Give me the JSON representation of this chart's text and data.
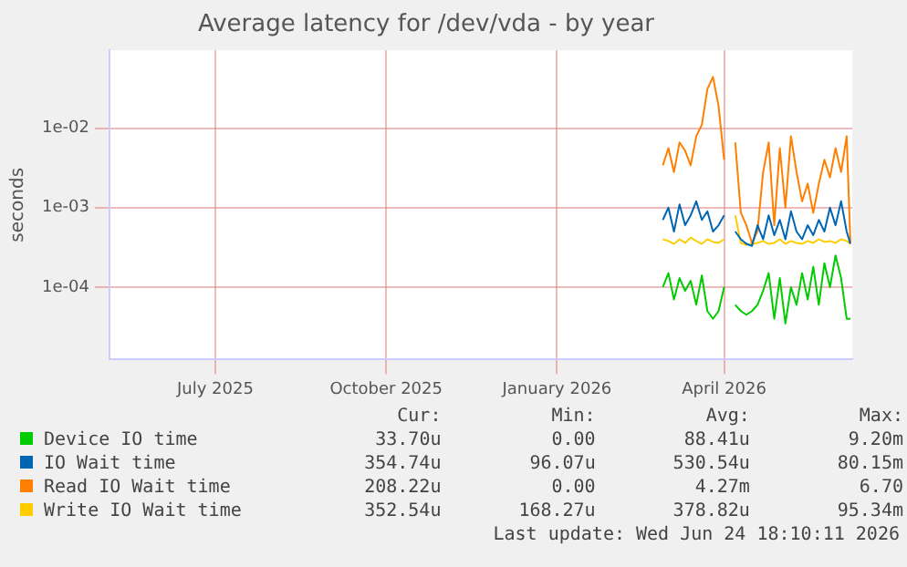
{
  "chart_data": {
    "type": "line",
    "title": "Average latency for /dev/vda - by year",
    "ylabel": "seconds",
    "log": "y",
    "grid": true,
    "legend": "bottom",
    "marker": "none",
    "x": [
      "2026-03-14",
      "2026-03-17",
      "2026-03-20",
      "2026-03-23",
      "2026-03-26",
      "2026-03-29",
      "2026-04-01",
      "2026-04-04",
      "2026-04-07",
      "2026-04-10",
      "2026-04-13",
      "2026-04-16",
      "2026-04-19",
      "2026-04-22",
      "2026-04-25",
      "2026-04-28",
      "2026-05-01",
      "2026-05-04",
      "2026-05-07",
      "2026-05-10",
      "2026-05-13",
      "2026-05-16",
      "2026-05-19",
      "2026-05-22",
      "2026-05-25",
      "2026-05-28",
      "2026-05-31",
      "2026-06-03",
      "2026-06-06",
      "2026-06-09",
      "2026-06-12",
      "2026-06-15",
      "2026-06-18",
      "2026-06-21",
      "2026-06-23"
    ],
    "xlim": [
      "2025-05-20",
      "2026-06-24"
    ],
    "xticks": [
      {
        "value": "2025-07-16",
        "label": "July 2025"
      },
      {
        "value": "2025-10-16",
        "label": "October 2025"
      },
      {
        "value": "2026-01-16",
        "label": "January 2026"
      },
      {
        "value": "2026-04-16",
        "label": "April 2026"
      }
    ],
    "ylim": [
      1.23e-05,
      0.095
    ],
    "yticks": [
      {
        "value": 0.0001,
        "label": "1e-04"
      },
      {
        "value": 0.001,
        "label": "1e-03"
      },
      {
        "value": 0.01,
        "label": "1e-02"
      }
    ],
    "series": [
      {
        "name": "Device IO time",
        "color": "#00cc00",
        "values": [
          0.0001,
          0.00015,
          7e-05,
          0.00013,
          9e-05,
          0.00012,
          6e-05,
          0.00014,
          5e-05,
          4e-05,
          5e-05,
          0.0001,
          null,
          6e-05,
          5e-05,
          4.5e-05,
          5e-05,
          6e-05,
          9e-05,
          0.00015,
          4e-05,
          0.00013,
          3.5e-05,
          0.0001,
          6e-05,
          0.00015,
          7e-05,
          0.00018,
          6e-05,
          0.0002,
          0.0001,
          0.00025,
          0.00013,
          4e-05,
          4e-05
        ]
      },
      {
        "name": "IO Wait time",
        "color": "#0066b3",
        "values": [
          0.0007,
          0.001,
          0.0005,
          0.0011,
          0.0006,
          0.0008,
          0.0012,
          0.0007,
          0.0009,
          0.0005,
          0.0006,
          0.0008,
          null,
          0.0005,
          0.0004,
          0.00035,
          0.00033,
          0.0006,
          0.0004,
          0.0008,
          0.00045,
          0.0007,
          0.0004,
          0.0009,
          0.0005,
          0.0004,
          0.0006,
          0.00045,
          0.0007,
          0.0005,
          0.001,
          0.0006,
          0.0012,
          0.0005,
          0.00035
        ]
      },
      {
        "name": "Read IO Wait time",
        "color": "#ff8000",
        "values": [
          0.0034,
          0.0056,
          0.0028,
          0.0066,
          0.0052,
          0.0034,
          0.0079,
          0.011,
          0.031,
          0.044,
          0.019,
          0.004,
          null,
          0.0066,
          0.00086,
          0.0006,
          0.00036,
          0.00051,
          0.0028,
          0.0066,
          0.0006,
          0.0056,
          0.001,
          0.0079,
          0.0028,
          0.0012,
          0.002,
          0.00086,
          0.002,
          0.004,
          0.0024,
          0.0056,
          0.0028,
          0.0079,
          0.00036
        ]
      },
      {
        "name": "Write IO Wait time",
        "color": "#ffcc00",
        "values": [
          0.0004,
          0.00038,
          0.00035,
          0.0004,
          0.00036,
          0.00042,
          0.00038,
          0.00035,
          0.0004,
          0.00037,
          0.00036,
          0.0004,
          null,
          0.0008,
          0.00036,
          0.00034,
          0.00035,
          0.00036,
          0.00038,
          0.00035,
          0.00036,
          0.0004,
          0.00035,
          0.00038,
          0.00036,
          0.00035,
          0.00038,
          0.00036,
          0.0004,
          0.00037,
          0.00038,
          0.00036,
          0.0004,
          0.00038,
          0.00035
        ]
      }
    ],
    "annotations": [
      "Cur:",
      "Min:",
      "Avg:",
      "Max:",
      "33.70u",
      "0.00",
      "88.41u",
      "9.20m",
      "354.74u",
      "96.07u",
      "530.54u",
      "80.15m",
      "208.22u",
      "0.00",
      "4.27m",
      "6.70",
      "352.54u",
      "168.27u",
      "378.82u",
      "95.34m",
      "Last update: Wed Jun 24 18:10:11 2026"
    ]
  }
}
